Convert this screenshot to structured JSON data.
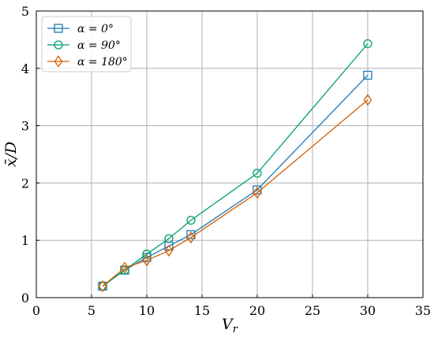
{
  "chart_data": {
    "type": "line",
    "xlabel": "V_r",
    "ylabel": "x̄/D",
    "xlim": [
      0,
      35
    ],
    "ylim": [
      0,
      5
    ],
    "xticks": [
      0,
      5,
      10,
      15,
      20,
      25,
      30,
      35
    ],
    "yticks": [
      0,
      1,
      2,
      3,
      4,
      5
    ],
    "grid": true,
    "legend_position": "top-left",
    "x": [
      6,
      8,
      10,
      12,
      14,
      20,
      30
    ],
    "series": [
      {
        "name": "α = 0°",
        "marker": "square",
        "color": "#1f77b4",
        "values": [
          0.2,
          0.48,
          0.7,
          0.9,
          1.1,
          1.88,
          3.88
        ]
      },
      {
        "name": "α = 90°",
        "marker": "circle",
        "color": "#009e73",
        "values": [
          0.2,
          0.48,
          0.76,
          1.03,
          1.35,
          2.17,
          4.43
        ]
      },
      {
        "name": "α = 180°",
        "marker": "diamond",
        "color": "#d55e00",
        "values": [
          0.2,
          0.52,
          0.65,
          0.82,
          1.05,
          1.83,
          3.45
        ]
      }
    ]
  }
}
